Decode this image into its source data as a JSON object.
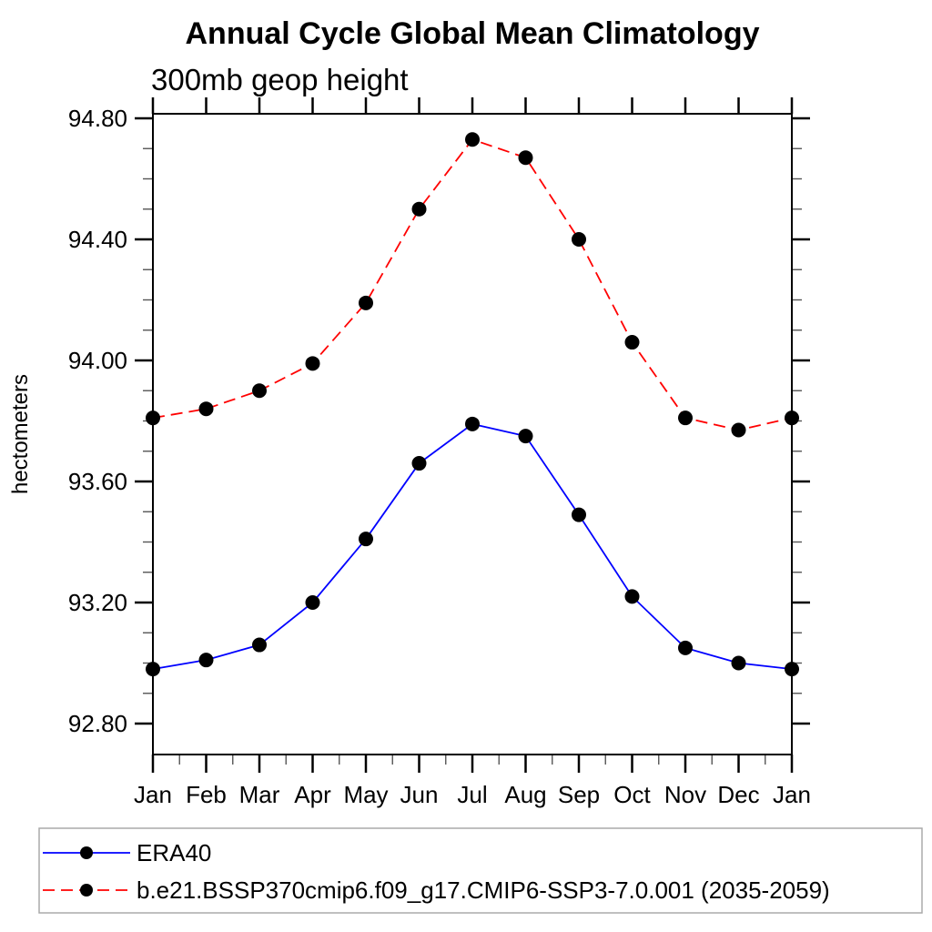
{
  "header": {
    "title": "Annual Cycle Global Mean Climatology",
    "subtitle": "300mb geop height"
  },
  "chart_data": {
    "type": "line",
    "title": "Annual Cycle Global Mean Climatology",
    "subtitle": "300mb geop height",
    "ylabel": "hectometers",
    "xlabel": "",
    "x_categories": [
      "Jan",
      "Feb",
      "Mar",
      "Apr",
      "May",
      "Jun",
      "Jul",
      "Aug",
      "Sep",
      "Oct",
      "Nov",
      "Dec",
      "Jan"
    ],
    "ylim": [
      92.7,
      94.815
    ],
    "yticks_major": [
      94.8,
      94.4,
      94.0,
      93.6,
      93.2,
      92.8
    ],
    "ytick_labels": [
      "94.80",
      "94.40",
      "94.00",
      "93.60",
      "93.20",
      "92.80"
    ],
    "y_minor_interval": 0.1,
    "x_minor": "half-month ticks",
    "grid": false,
    "legend_position": "bottom-left-box",
    "series": [
      {
        "name": "ERA40",
        "color": "#0000ff",
        "line_style": "solid",
        "marker": "black-filled-circle",
        "values": [
          92.98,
          93.01,
          93.06,
          93.2,
          93.41,
          93.66,
          93.79,
          93.75,
          93.49,
          93.22,
          93.05,
          93.0,
          92.98
        ]
      },
      {
        "name": "b.e21.BSSP370cmip6.f09_g17.CMIP6-SSP3-7.0.001 (2035-2059)",
        "color": "#ff0000",
        "line_style": "dashed",
        "marker": "black-filled-circle",
        "values": [
          93.81,
          93.84,
          93.9,
          93.99,
          94.19,
          94.5,
          94.73,
          94.67,
          94.4,
          94.06,
          93.81,
          93.77,
          93.81
        ]
      }
    ]
  }
}
